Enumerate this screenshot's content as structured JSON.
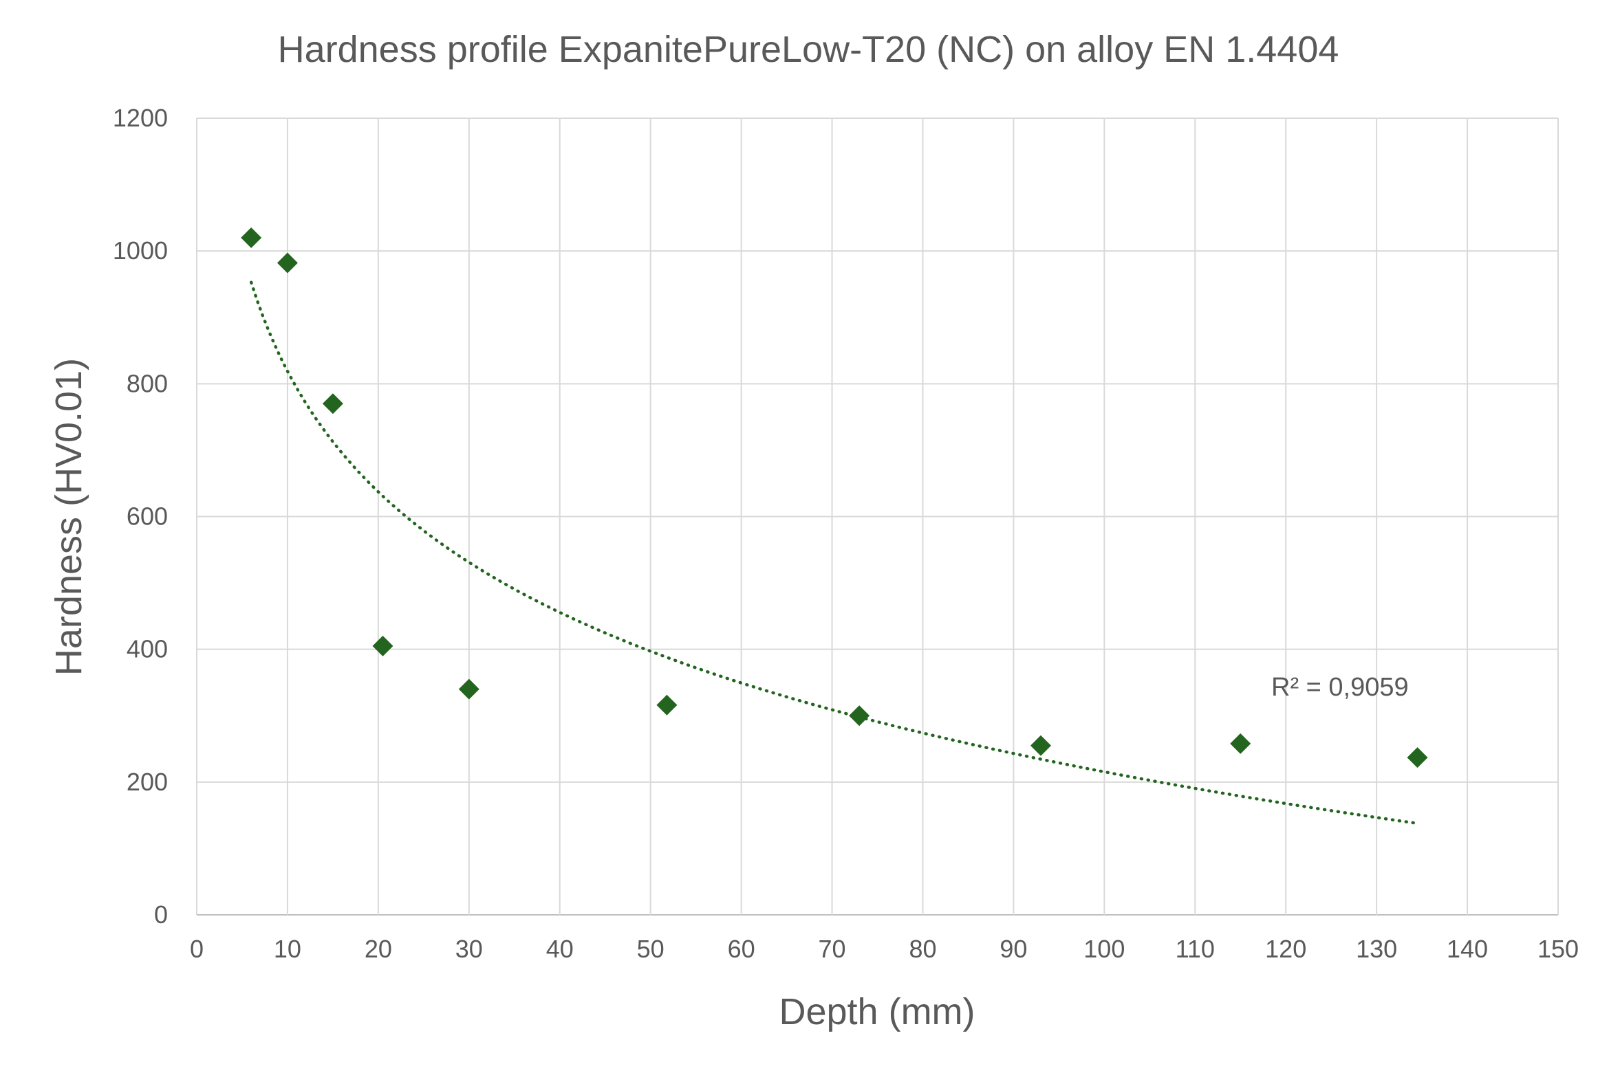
{
  "chart_data": {
    "type": "scatter",
    "title": "Hardness profile ExpanitePureLow-T20 (NC) on alloy EN 1.4404",
    "xlabel": "Depth (mm)",
    "ylabel": "Hardness (HV0.01)",
    "xlim": [
      0,
      150
    ],
    "ylim": [
      0,
      1200
    ],
    "xticks": [
      0,
      10,
      20,
      30,
      40,
      50,
      60,
      70,
      80,
      90,
      100,
      110,
      120,
      130,
      140,
      150
    ],
    "yticks": [
      0,
      200,
      400,
      600,
      800,
      1000,
      1200
    ],
    "grid": true,
    "legend": "none",
    "series": [
      {
        "marker": "diamond",
        "color": "#23651F",
        "points": [
          {
            "x": 6,
            "y": 1020
          },
          {
            "x": 10,
            "y": 982
          },
          {
            "x": 15,
            "y": 770
          },
          {
            "x": 20.5,
            "y": 405
          },
          {
            "x": 30,
            "y": 340
          },
          {
            "x": 51.8,
            "y": 316
          },
          {
            "x": 73,
            "y": 300
          },
          {
            "x": 93,
            "y": 255
          },
          {
            "x": 115,
            "y": 258
          },
          {
            "x": 134.5,
            "y": 237
          }
        ]
      }
    ],
    "trendline": {
      "type": "logarithmic",
      "style": "dotted",
      "color": "#23651F",
      "x_range": [
        6,
        134.5
      ],
      "annotation": "R² = 0,9059"
    },
    "colors": {
      "marker": "#23651F",
      "grid": "#D9D9D9",
      "axis": "#BFBFBF",
      "text": "#595959"
    }
  }
}
